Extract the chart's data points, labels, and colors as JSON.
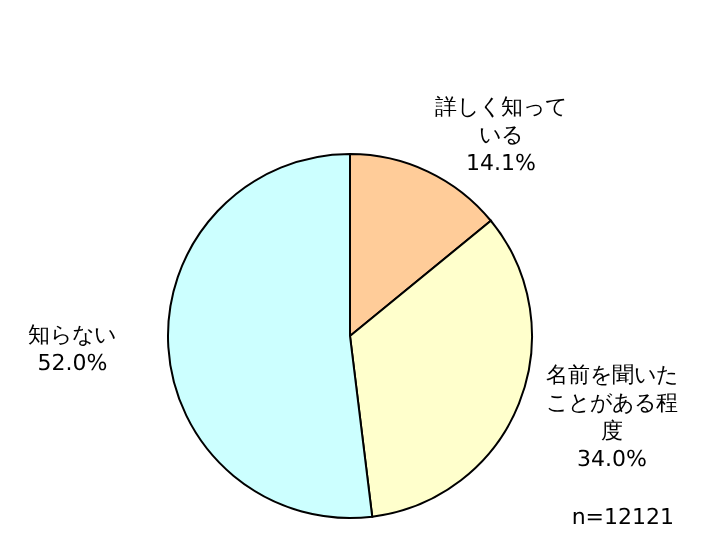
{
  "chart_data": {
    "type": "pie",
    "categories": [
      "詳しく知っている",
      "名前を聞いたことがある程度",
      "知らない"
    ],
    "values": [
      14.1,
      34.0,
      52.0
    ],
    "colors": [
      "#ffcc99",
      "#ffffcc",
      "#ccffff"
    ],
    "value_labels": [
      "14.1%",
      "34.0%",
      "52.0%"
    ],
    "annotations": [
      "n=12121"
    ]
  }
}
